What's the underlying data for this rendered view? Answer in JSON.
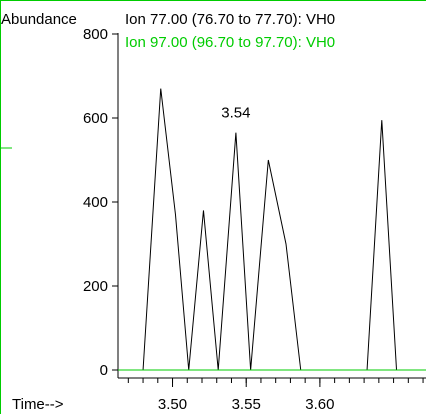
{
  "chart_data": {
    "type": "line",
    "ylabel": "Abundance",
    "xlabel": "Time-->",
    "xlim": [
      3.463,
      3.672
    ],
    "ylim": [
      0,
      800
    ],
    "yticks": [
      0,
      200,
      400,
      600,
      800
    ],
    "xticks": [
      3.5,
      3.55,
      3.6
    ],
    "xtick_labels": [
      "3.50",
      "3.55",
      "3.60"
    ],
    "series": [
      {
        "name": "Ion  77.00 (76.70 to 77.70): VH0",
        "color": "#000000",
        "points": [
          [
            3.48,
            0
          ],
          [
            3.492,
            670
          ],
          [
            3.502,
            370
          ],
          [
            3.511,
            0
          ],
          [
            3.521,
            380
          ],
          [
            3.531,
            0
          ],
          [
            3.543,
            565
          ],
          [
            3.553,
            0
          ],
          [
            3.565,
            500
          ],
          [
            3.577,
            300
          ],
          [
            3.587,
            0
          ],
          [
            3.632,
            0
          ],
          [
            3.642,
            595
          ],
          [
            3.652,
            0
          ]
        ]
      },
      {
        "name": "Ion  97.00 (96.70 to 97.70): VH0",
        "color": "#00cc00",
        "points": [
          [
            3.463,
            0
          ],
          [
            3.672,
            0
          ]
        ]
      }
    ],
    "annotations": [
      {
        "text": "3.54",
        "x": 3.543,
        "y": 565
      }
    ],
    "grid": false
  }
}
